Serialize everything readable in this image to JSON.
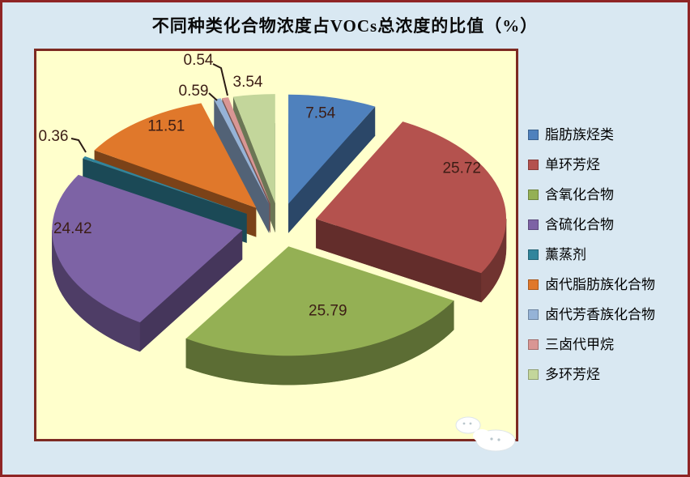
{
  "page": {
    "background": "#d9e8f2",
    "border_color": "#8f2525"
  },
  "chart_data": {
    "type": "pie",
    "variant": "3d-exploded",
    "title": "不同种类化合物浓度占VOCs总浓度的比值（%）",
    "unit": "%",
    "legend_position": "right",
    "plot_background": "#ffffcc",
    "plot_border_color": "#7d2a22",
    "data_label_color": "#3c1d15",
    "leader_line_color": "#2b1b14",
    "start_angle_deg": 0,
    "direction": "clockwise",
    "slices": [
      {
        "label": "脂肪族烃类",
        "value": 7.54,
        "color": "#4f81bd"
      },
      {
        "label": "单环芳烃",
        "value": 25.72,
        "color": "#b4524e"
      },
      {
        "label": "含氧化合物",
        "value": 25.79,
        "color": "#94b054"
      },
      {
        "label": "含硫化合物",
        "value": 24.42,
        "color": "#7d63a5"
      },
      {
        "label": "薰蒸剂",
        "value": 0.36,
        "color": "#31859c"
      },
      {
        "label": "卤代脂肪族化合物",
        "value": 11.51,
        "color": "#e0782b"
      },
      {
        "label": "卤代芳香族化合物",
        "value": 0.59,
        "color": "#95b3d7"
      },
      {
        "label": "三卤代甲烷",
        "value": 0.54,
        "color": "#d99694"
      },
      {
        "label": "多环芳烃",
        "value": 3.54,
        "color": "#c3d69b"
      }
    ]
  },
  "watermark_icon": "clouds"
}
